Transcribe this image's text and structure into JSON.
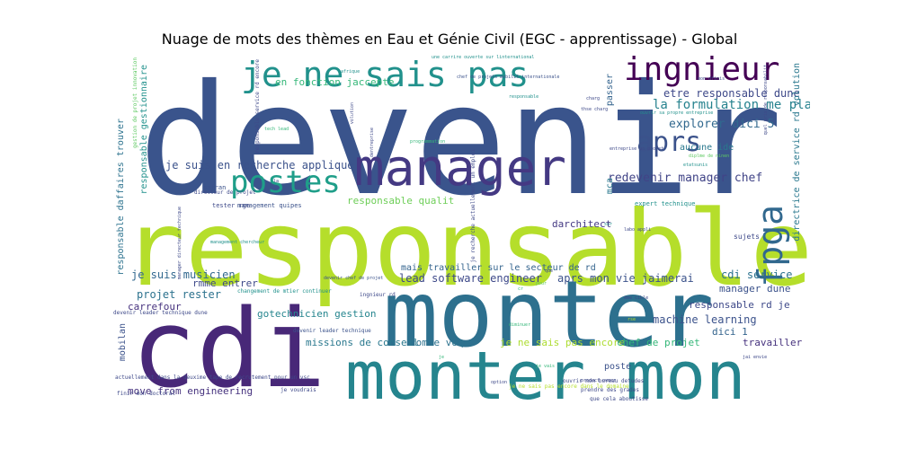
{
  "chart_data": {
    "type": "wordcloud",
    "title": "Nuage de mots des thèmes en Eau et Génie Civil (EGC - apprentissage) - Global",
    "words": [
      {
        "text": "devenir",
        "color": "#3a548c"
      },
      {
        "text": "responsable",
        "color": "#b5de2b"
      },
      {
        "text": "cdi",
        "color": "#482878"
      },
      {
        "text": "monter",
        "color": "#2d708e"
      },
      {
        "text": "monter mon",
        "color": "#25858e"
      },
      {
        "text": "manager",
        "color": "#443983"
      },
      {
        "text": "je ne sais pas",
        "color": "#21918c"
      },
      {
        "text": "ingnieur",
        "color": "#440154"
      },
      {
        "text": "postes",
        "color": "#1f9e89"
      },
      {
        "text": "aprs",
        "color": "#3b528b"
      },
      {
        "text": "fpga",
        "color": "#31688e"
      },
      {
        "text": "la formulation me plat",
        "color": "#26828e"
      },
      {
        "text": "etre responsable dune",
        "color": "#3e4989"
      },
      {
        "text": "explorer dici 5",
        "color": "#31688e"
      },
      {
        "text": "en fonction jaccepte",
        "color": "#35b779"
      },
      {
        "text": "je suis en recherche applique",
        "color": "#3b528b"
      },
      {
        "text": "redevenir manager chef",
        "color": "#414487"
      },
      {
        "text": "responsable qualit",
        "color": "#6ece58"
      },
      {
        "text": "aucune ide",
        "color": "#2a788e"
      },
      {
        "text": "darchitect",
        "color": "#443983"
      },
      {
        "text": "je suis musicien",
        "color": "#31688e"
      },
      {
        "text": "projet rester",
        "color": "#2c728e"
      },
      {
        "text": "rmme entrer",
        "color": "#3e4989"
      },
      {
        "text": "carrefour",
        "color": "#46327e"
      },
      {
        "text": "gotechnicien gestion",
        "color": "#25858e"
      },
      {
        "text": "lead software engineer",
        "color": "#3e4989"
      },
      {
        "text": "mais travailler sur le secteur de rd",
        "color": "#33638d"
      },
      {
        "text": "aprs mon vie jaimerai",
        "color": "#3b528b"
      },
      {
        "text": "cdi service",
        "color": "#2c728e"
      },
      {
        "text": "manager dune",
        "color": "#3b528b"
      },
      {
        "text": "responsable rd je",
        "color": "#3e4989"
      },
      {
        "text": "machine learning",
        "color": "#3b528b"
      },
      {
        "text": "dici 1",
        "color": "#33638d"
      },
      {
        "text": "missions de conseil",
        "color": "#2a788e"
      },
      {
        "text": "comme voqu",
        "color": "#2c728e"
      },
      {
        "text": "je ne sais pas encore",
        "color": "#addc30"
      },
      {
        "text": "chef de projet",
        "color": "#35b779"
      },
      {
        "text": "travailler",
        "color": "#46327e"
      },
      {
        "text": "poste",
        "color": "#3b528b"
      },
      {
        "text": "move from engineering",
        "color": "#46327e"
      },
      {
        "text": "responsable daffaires trouver",
        "color": "#2c728e"
      },
      {
        "text": "responsable gestionnaire",
        "color": "#21918c"
      },
      {
        "text": "mobilan",
        "color": "#3b528b"
      },
      {
        "text": "directrice de service rd volution",
        "color": "#2a788e"
      },
      {
        "text": "passer",
        "color": "#33638d"
      },
      {
        "text": "mca",
        "color": "#2a788e"
      },
      {
        "text": "sujets",
        "color": "#3e4989"
      },
      {
        "text": "expert technique",
        "color": "#21918c"
      },
      {
        "text": "management quipes",
        "color": "#3b528b"
      },
      {
        "text": "tester rge",
        "color": "#3e4989"
      },
      {
        "text": "safran",
        "color": "#3b528b"
      },
      {
        "text": "directeur de projet",
        "color": "#3e4989"
      },
      {
        "text": "devenir chef de projet",
        "color": "#3b528b"
      },
      {
        "text": "devenir leader technique",
        "color": "#3b528b"
      },
      {
        "text": "devenir leader technique dune",
        "color": "#3e4989"
      },
      {
        "text": "changement de mtier continuer",
        "color": "#21918c"
      },
      {
        "text": "ingnieur rd",
        "color": "#3e4989"
      },
      {
        "text": "actuellement dans la deuxime tape de recrutement pour un vsc",
        "color": "#3e4989"
      },
      {
        "text": "finir mon doctoral",
        "color": "#3e4989"
      },
      {
        "text": "je voudrais",
        "color": "#3e4989"
      },
      {
        "text": "ouvrir mon bureau detudes",
        "color": "#3e4989"
      },
      {
        "text": "que cela aboutisse",
        "color": "#3e4989"
      },
      {
        "text": "prendre des grades",
        "color": "#3e4989"
      },
      {
        "text": "product owner",
        "color": "#3e4989"
      },
      {
        "text": "une carrire ouverte sur linternational",
        "color": "#21918c"
      },
      {
        "text": "chef de projets mobilit internationale",
        "color": "#3b528b"
      },
      {
        "text": "ouvrir sa propre entreprise",
        "color": "#21918c"
      },
      {
        "text": "programmation",
        "color": "#35b779"
      },
      {
        "text": "je recherche actuellement un emploi",
        "color": "#3e4989"
      },
      {
        "text": "responsable service rd encore",
        "color": "#3e4989"
      },
      {
        "text": "gestion de projet innovation",
        "color": "#5ec962"
      },
      {
        "text": "dentreprise",
        "color": "#3e4989"
      },
      {
        "text": "volution",
        "color": "#3e4989"
      },
      {
        "text": "tech lead",
        "color": "#35b779"
      },
      {
        "text": "management chercheur",
        "color": "#21918c"
      },
      {
        "text": "manager directeur technique",
        "color": "#3e4989"
      },
      {
        "text": "mon dfinis",
        "color": "#3e4989"
      },
      {
        "text": "etatsunis",
        "color": "#21918c"
      },
      {
        "text": "diplme de ninen",
        "color": "#5ec962"
      },
      {
        "text": "je ne sais pas encore dans le domaine",
        "color": "#b5de2b"
      },
      {
        "text": "diminuer",
        "color": "#35b779"
      },
      {
        "text": "lafrique",
        "color": "#21918c"
      },
      {
        "text": "jai envie",
        "color": "#3e4989"
      },
      {
        "text": "charg",
        "color": "#3e4989"
      },
      {
        "text": "thse charg",
        "color": "#3e4989"
      },
      {
        "text": "entreprise un projet",
        "color": "#3e4989"
      },
      {
        "text": "responsable",
        "color": "#21918c"
      },
      {
        "text": "quel prix de responsabilit",
        "color": "#3e4989"
      },
      {
        "text": "je vais",
        "color": "#35b779"
      },
      {
        "text": "pour",
        "color": "#5ec962"
      },
      {
        "text": "option",
        "color": "#3e4989"
      },
      {
        "text": "mme cible",
        "color": "#3e4989"
      },
      {
        "text": "rse",
        "color": "#b5de2b"
      },
      {
        "text": "labo appli",
        "color": "#3e4989"
      },
      {
        "text": "je",
        "color": "#35b779"
      },
      {
        "text": "la",
        "color": "#3e4989"
      },
      {
        "text": "cr",
        "color": "#35b779"
      },
      {
        "text": "que",
        "color": "#3e4989"
      },
      {
        "text": "sur",
        "color": "#21918c"
      }
    ]
  }
}
